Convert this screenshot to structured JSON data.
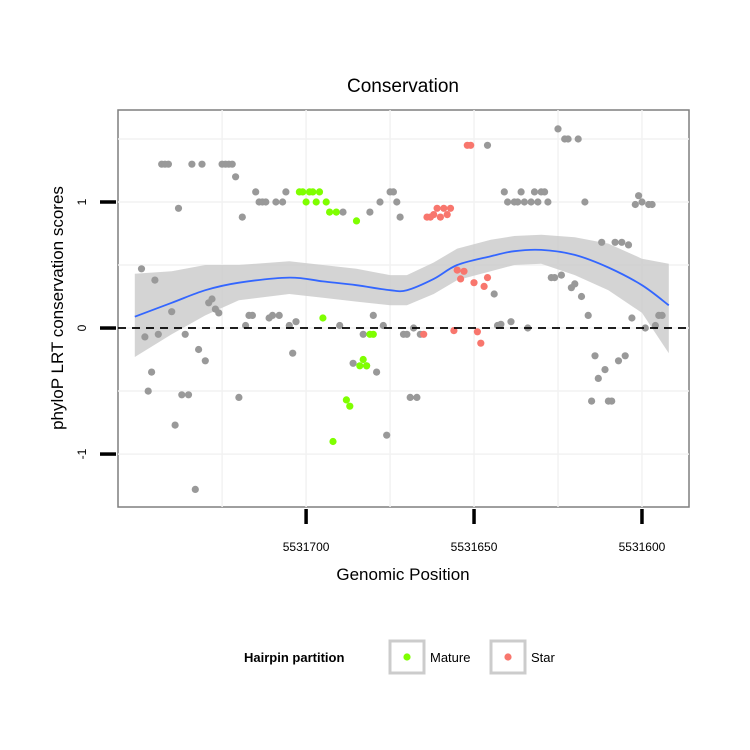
{
  "chart_data": {
    "type": "scatter",
    "title": "Conservation",
    "xlabel": "Genomic Position",
    "ylabel": "phyloP LRT conservation scores",
    "x_reversed": true,
    "xlim": [
      5531586,
      5531756
    ],
    "ylim": [
      -1.42,
      1.73
    ],
    "x_ticks": [
      5531700,
      5531650,
      5531600
    ],
    "x_tick_labels": [
      "5531700",
      "5531650",
      "5531600"
    ],
    "y_ticks": [
      -1,
      0,
      1
    ],
    "y_tick_labels": [
      "-1",
      "0",
      "1"
    ],
    "grid": true,
    "reference_line": {
      "y": 0,
      "style": "dashed"
    },
    "legend": {
      "title": "Hairpin partition",
      "position": "bottom",
      "entries": [
        {
          "label": "Mature",
          "color": "#7fff00"
        },
        {
          "label": "Star",
          "color": "#f8766d"
        }
      ]
    },
    "colors": {
      "other": "#999999",
      "mature": "#7fff00",
      "star": "#f8766d",
      "smooth": "#3366ff",
      "band": "#cccccc"
    },
    "series": [
      {
        "group": "other",
        "points": [
          [
            5531749,
            0.47
          ],
          [
            5531748,
            -0.07
          ],
          [
            5531747,
            -0.5
          ],
          [
            5531746,
            -0.35
          ],
          [
            5531745,
            0.38
          ],
          [
            5531744,
            -0.05
          ],
          [
            5531743,
            1.3
          ],
          [
            5531742,
            1.3
          ],
          [
            5531741,
            1.3
          ],
          [
            5531740,
            0.13
          ],
          [
            5531739,
            -0.77
          ],
          [
            5531738,
            0.95
          ],
          [
            5531737,
            -0.53
          ],
          [
            5531736,
            -0.05
          ],
          [
            5531735,
            -0.53
          ],
          [
            5531734,
            1.3
          ],
          [
            5531733,
            -1.28
          ],
          [
            5531732,
            -0.17
          ],
          [
            5531731,
            1.3
          ],
          [
            5531730,
            -0.26
          ],
          [
            5531729,
            0.2
          ],
          [
            5531728,
            0.23
          ],
          [
            5531727,
            0.15
          ],
          [
            5531726,
            0.12
          ],
          [
            5531725,
            1.3
          ],
          [
            5531724,
            1.3
          ],
          [
            5531723,
            1.3
          ],
          [
            5531722,
            1.3
          ],
          [
            5531721,
            1.2
          ],
          [
            5531720,
            -0.55
          ],
          [
            5531719,
            0.88
          ],
          [
            5531718,
            0.02
          ],
          [
            5531717,
            0.1
          ],
          [
            5531716,
            0.1
          ],
          [
            5531715,
            1.08
          ],
          [
            5531714,
            1.0
          ],
          [
            5531713,
            1.0
          ],
          [
            5531712,
            1.0
          ],
          [
            5531711,
            0.08
          ],
          [
            5531710,
            0.1
          ],
          [
            5531709,
            1.0
          ],
          [
            5531708,
            0.1
          ],
          [
            5531707,
            1.0
          ],
          [
            5531706,
            1.08
          ],
          [
            5531705,
            0.02
          ],
          [
            5531704,
            -0.2
          ],
          [
            5531703,
            0.05
          ],
          [
            5531690,
            0.02
          ],
          [
            5531689,
            0.92
          ],
          [
            5531686,
            -0.28
          ],
          [
            5531683,
            -0.05
          ],
          [
            5531682,
            -0.3
          ],
          [
            5531681,
            0.92
          ],
          [
            5531680,
            0.1
          ],
          [
            5531679,
            -0.35
          ],
          [
            5531678,
            1.0
          ],
          [
            5531677,
            0.02
          ],
          [
            5531676,
            -0.85
          ],
          [
            5531675,
            1.08
          ],
          [
            5531674,
            1.08
          ],
          [
            5531673,
            1.0
          ],
          [
            5531672,
            0.88
          ],
          [
            5531671,
            -0.05
          ],
          [
            5531670,
            -0.05
          ],
          [
            5531669,
            -0.55
          ],
          [
            5531668,
            0.0
          ],
          [
            5531667,
            -0.55
          ],
          [
            5531666,
            -0.05
          ],
          [
            5531646,
            1.45
          ],
          [
            5531644,
            0.27
          ],
          [
            5531643,
            0.02
          ],
          [
            5531642,
            0.03
          ],
          [
            5531641,
            1.08
          ],
          [
            5531640,
            1.0
          ],
          [
            5531639,
            0.05
          ],
          [
            5531638,
            1.0
          ],
          [
            5531637,
            1.0
          ],
          [
            5531636,
            1.08
          ],
          [
            5531635,
            1.0
          ],
          [
            5531634,
            0.0
          ],
          [
            5531633,
            1.0
          ],
          [
            5531632,
            1.08
          ],
          [
            5531631,
            1.0
          ],
          [
            5531630,
            1.08
          ],
          [
            5531629,
            1.08
          ],
          [
            5531628,
            1.0
          ],
          [
            5531627,
            0.4
          ],
          [
            5531626,
            0.4
          ],
          [
            5531625,
            1.58
          ],
          [
            5531624,
            0.42
          ],
          [
            5531623,
            1.5
          ],
          [
            5531622,
            1.5
          ],
          [
            5531621,
            0.32
          ],
          [
            5531620,
            0.35
          ],
          [
            5531619,
            1.5
          ],
          [
            5531618,
            0.25
          ],
          [
            5531617,
            1.0
          ],
          [
            5531616,
            0.1
          ],
          [
            5531615,
            -0.58
          ],
          [
            5531614,
            -0.22
          ],
          [
            5531613,
            -0.4
          ],
          [
            5531612,
            0.68
          ],
          [
            5531611,
            -0.33
          ],
          [
            5531610,
            -0.58
          ],
          [
            5531609,
            -0.58
          ],
          [
            5531608,
            0.68
          ],
          [
            5531607,
            -0.26
          ],
          [
            5531606,
            0.68
          ],
          [
            5531605,
            -0.22
          ],
          [
            5531604,
            0.66
          ],
          [
            5531603,
            0.08
          ],
          [
            5531602,
            0.98
          ],
          [
            5531601,
            1.05
          ],
          [
            5531600,
            1.0
          ],
          [
            5531599,
            0.0
          ],
          [
            5531598,
            0.98
          ],
          [
            5531597,
            0.98
          ],
          [
            5531596,
            0.02
          ],
          [
            5531595,
            0.1
          ],
          [
            5531594,
            0.1
          ]
        ]
      },
      {
        "group": "mature",
        "name": "Mature",
        "points": [
          [
            5531702,
            1.08
          ],
          [
            5531701,
            1.08
          ],
          [
            5531700,
            1.0
          ],
          [
            5531699,
            1.08
          ],
          [
            5531698,
            1.08
          ],
          [
            5531697,
            1.0
          ],
          [
            5531696,
            1.08
          ],
          [
            5531695,
            0.08
          ],
          [
            5531694,
            1.0
          ],
          [
            5531693,
            0.92
          ],
          [
            5531692,
            -0.9
          ],
          [
            5531691,
            0.92
          ],
          [
            5531688,
            -0.57
          ],
          [
            5531687,
            -0.62
          ],
          [
            5531685,
            0.85
          ],
          [
            5531684,
            -0.3
          ],
          [
            5531683,
            -0.25
          ],
          [
            5531682,
            -0.3
          ],
          [
            5531681,
            -0.05
          ],
          [
            5531680,
            -0.05
          ]
        ]
      },
      {
        "group": "star",
        "name": "Star",
        "points": [
          [
            5531665,
            -0.05
          ],
          [
            5531664,
            0.88
          ],
          [
            5531663,
            0.88
          ],
          [
            5531662,
            0.9
          ],
          [
            5531661,
            0.95
          ],
          [
            5531660,
            0.88
          ],
          [
            5531659,
            0.95
          ],
          [
            5531658,
            0.9
          ],
          [
            5531657,
            0.95
          ],
          [
            5531656,
            -0.02
          ],
          [
            5531655,
            0.46
          ],
          [
            5531654,
            0.39
          ],
          [
            5531653,
            0.45
          ],
          [
            5531652,
            1.45
          ],
          [
            5531651,
            1.45
          ],
          [
            5531650,
            0.36
          ],
          [
            5531649,
            -0.03
          ],
          [
            5531648,
            -0.12
          ],
          [
            5531647,
            0.33
          ],
          [
            5531646,
            0.4
          ]
        ]
      }
    ],
    "smooth": {
      "x": [
        5531751,
        5531740,
        5531730,
        5531720,
        5531705,
        5531695,
        5531685,
        5531675,
        5531670,
        5531662,
        5531655,
        5531645,
        5531638,
        5531630,
        5531620,
        5531610,
        5531600,
        5531592
      ],
      "y": [
        0.09,
        0.2,
        0.3,
        0.36,
        0.4,
        0.37,
        0.34,
        0.3,
        0.3,
        0.39,
        0.5,
        0.57,
        0.61,
        0.62,
        0.58,
        0.48,
        0.34,
        0.18
      ],
      "lower": [
        -0.23,
        -0.05,
        0.1,
        0.22,
        0.27,
        0.24,
        0.21,
        0.18,
        0.18,
        0.27,
        0.38,
        0.45,
        0.5,
        0.51,
        0.42,
        0.3,
        0.12,
        -0.2
      ],
      "upper": [
        0.43,
        0.45,
        0.5,
        0.5,
        0.53,
        0.5,
        0.47,
        0.42,
        0.42,
        0.52,
        0.63,
        0.7,
        0.73,
        0.74,
        0.72,
        0.67,
        0.55,
        0.51
      ]
    }
  }
}
